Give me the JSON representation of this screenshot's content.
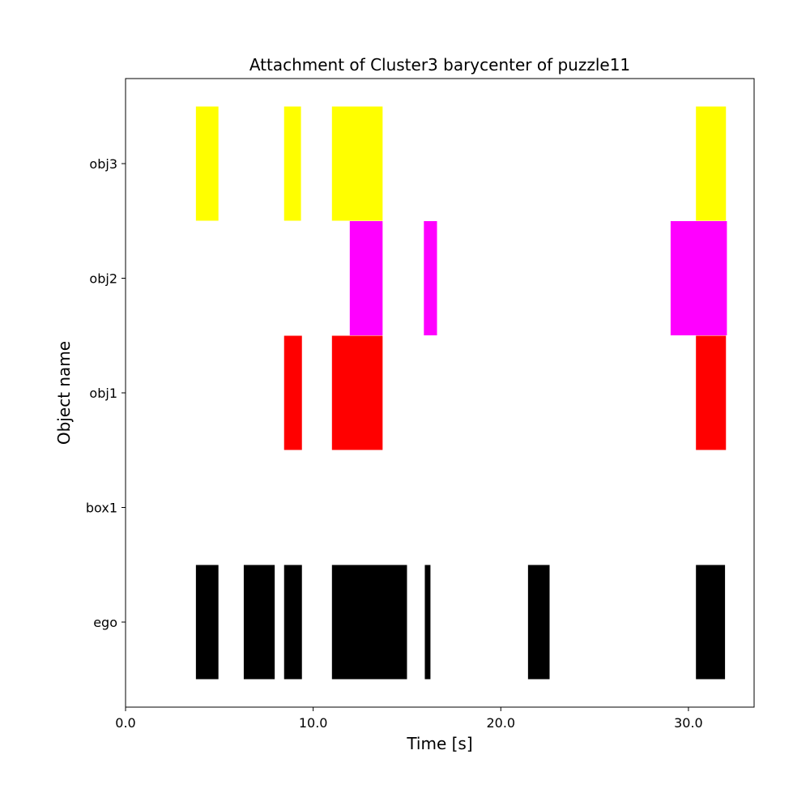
{
  "chart_data": {
    "type": "gantt",
    "title": "Attachment of Cluster3 barycenter of puzzle11",
    "xlabel": "Time [s]",
    "ylabel": "Object name",
    "xlim": [
      0,
      33.5
    ],
    "xticks": [
      0,
      10,
      20,
      30
    ],
    "xtick_labels": [
      "0.0",
      "10.0",
      "20.0",
      "30.0"
    ],
    "categories": [
      "ego",
      "box1",
      "obj1",
      "obj2",
      "obj3"
    ],
    "grid": false,
    "series": [
      {
        "category": "ego",
        "color": "#000000",
        "intervals": [
          [
            3.75,
            4.95
          ],
          [
            6.3,
            7.95
          ],
          [
            8.45,
            9.4
          ],
          [
            11.0,
            15.0
          ],
          [
            15.95,
            16.25
          ],
          [
            21.45,
            22.6
          ],
          [
            30.4,
            31.95
          ]
        ]
      },
      {
        "category": "box1",
        "color": "#ffffff",
        "intervals": []
      },
      {
        "category": "obj1",
        "color": "#ff0000",
        "intervals": [
          [
            8.45,
            9.4
          ],
          [
            11.0,
            13.7
          ],
          [
            30.4,
            32.0
          ]
        ]
      },
      {
        "category": "obj2",
        "color": "#ff00ff",
        "intervals": [
          [
            11.95,
            13.7
          ],
          [
            15.9,
            16.6
          ],
          [
            29.05,
            32.05
          ]
        ]
      },
      {
        "category": "obj3",
        "color": "#ffff00",
        "intervals": [
          [
            3.75,
            4.95
          ],
          [
            8.45,
            9.35
          ],
          [
            11.0,
            13.7
          ],
          [
            30.4,
            32.0
          ]
        ]
      }
    ]
  }
}
